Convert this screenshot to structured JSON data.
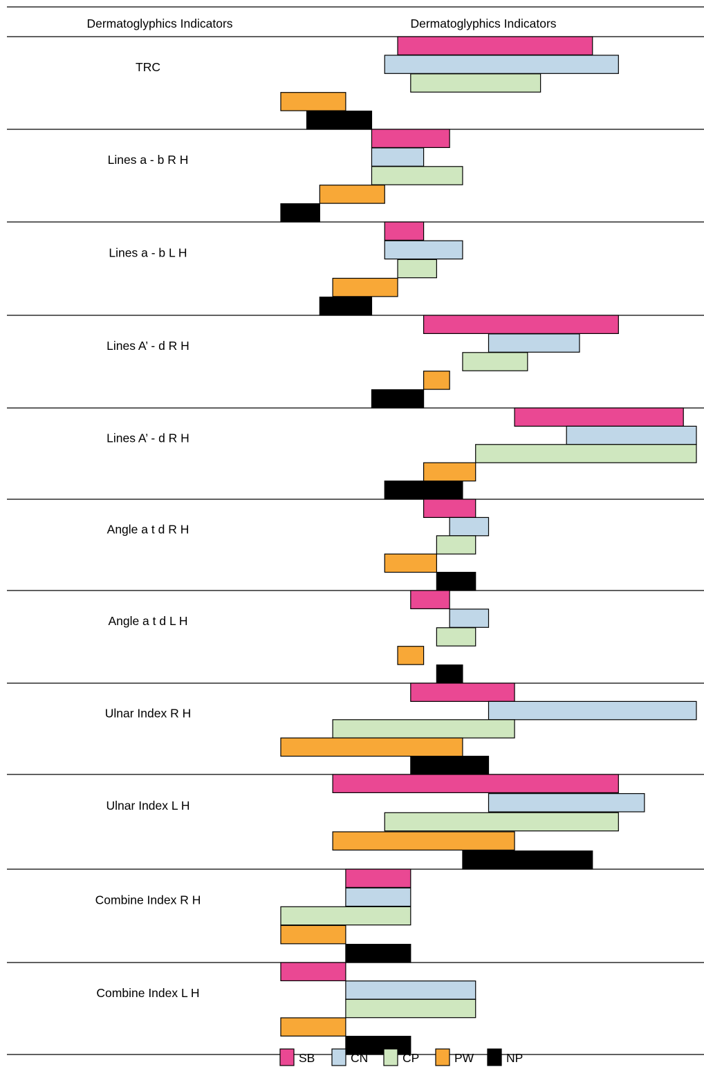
{
  "chart_data": {
    "type": "bar",
    "orientation": "horizontal-floating",
    "headers": [
      "Dermatoglyphics Indicators",
      "Dermatoglyphics Indicators"
    ],
    "xaxis": {
      "shown": false,
      "range": [
        0,
        32
      ]
    },
    "grid": false,
    "legend_position": "bottom",
    "categories": [
      "TRC",
      "Lines a - b R H",
      "Lines a - b L H",
      "Lines A’ - d R H",
      "Lines A’ - d R H",
      "Angle a t d R H",
      "Angle a t d L H",
      "Ulnar Index R H",
      "Ulnar Index L H",
      "Combine Index R H",
      "Combine Index L H"
    ],
    "series": [
      {
        "name": "SB",
        "color": "#ea4893",
        "ranges": [
          [
            9,
            24
          ],
          [
            7,
            13
          ],
          [
            8,
            11
          ],
          [
            11,
            26
          ],
          [
            18,
            31
          ],
          [
            11,
            15
          ],
          [
            10,
            13
          ],
          [
            10,
            18
          ],
          [
            4,
            26
          ],
          [
            5,
            10
          ],
          [
            0,
            5
          ]
        ]
      },
      {
        "name": "CN",
        "color": "#c0d7e8",
        "ranges": [
          [
            8,
            26
          ],
          [
            7,
            11
          ],
          [
            8,
            14
          ],
          [
            16,
            23
          ],
          [
            22,
            32
          ],
          [
            13,
            16
          ],
          [
            13,
            16
          ],
          [
            16,
            32
          ],
          [
            16,
            28
          ],
          [
            5,
            10
          ],
          [
            5,
            15
          ]
        ]
      },
      {
        "name": "CP",
        "color": "#cfe7bf",
        "ranges": [
          [
            10,
            20
          ],
          [
            7,
            14
          ],
          [
            9,
            12
          ],
          [
            14,
            19
          ],
          [
            15,
            32
          ],
          [
            12,
            15
          ],
          [
            12,
            15
          ],
          [
            4,
            18
          ],
          [
            8,
            26
          ],
          [
            0,
            10
          ],
          [
            5,
            15
          ]
        ]
      },
      {
        "name": "PW",
        "color": "#f8a837",
        "ranges": [
          [
            0,
            5
          ],
          [
            3,
            8
          ],
          [
            4,
            9
          ],
          [
            11,
            13
          ],
          [
            11,
            15
          ],
          [
            8,
            12
          ],
          [
            9,
            11
          ],
          [
            0,
            14
          ],
          [
            4,
            18
          ],
          [
            0,
            5
          ],
          [
            0,
            5
          ]
        ]
      },
      {
        "name": "NP",
        "color": "#000000",
        "ranges": [
          [
            2,
            7
          ],
          [
            0,
            3
          ],
          [
            3,
            7
          ],
          [
            7,
            11
          ],
          [
            8,
            14
          ],
          [
            12,
            15
          ],
          [
            12,
            14
          ],
          [
            10,
            16
          ],
          [
            14,
            24
          ],
          [
            5,
            10
          ],
          [
            5,
            10
          ]
        ]
      }
    ]
  }
}
